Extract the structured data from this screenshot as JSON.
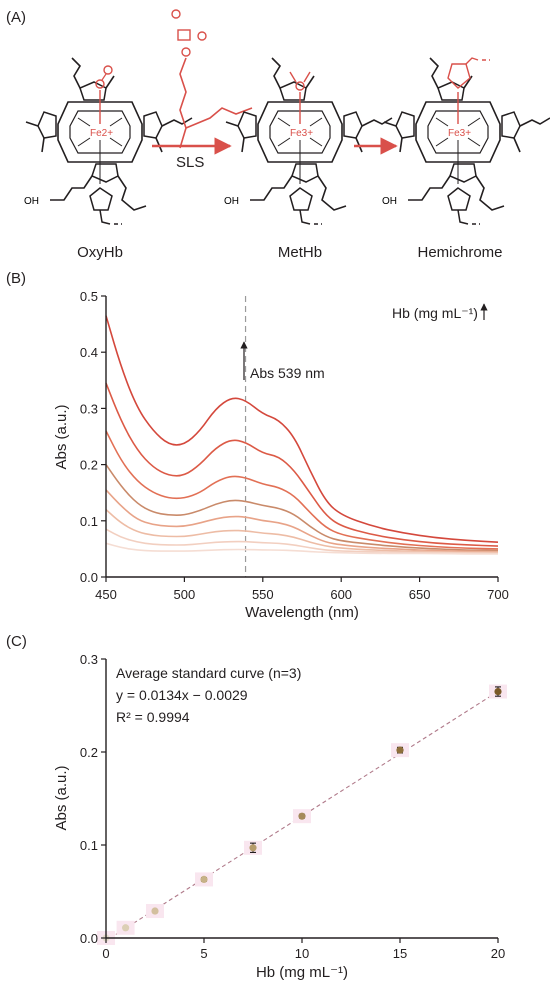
{
  "panels": {
    "a": "(A)",
    "b": "(B)",
    "c": "(C)"
  },
  "scheme": {
    "molecules": [
      "OxyHb",
      "MetHb",
      "Hemichrome"
    ],
    "reagent": "SLS",
    "iron_labels": [
      "Fe2+",
      "Fe3+",
      "Fe3+"
    ],
    "acid_label": "OH",
    "accent_color": "#d9504a"
  },
  "chart_data": [
    {
      "type": "line",
      "xlabel": "Wavelength (nm)",
      "ylabel": "Abs (a.u.)",
      "xlim": [
        450,
        700
      ],
      "ylim": [
        0,
        0.5
      ],
      "xticks": [
        "450",
        "500",
        "550",
        "600",
        "650",
        "700"
      ],
      "yticks": [
        "0.0",
        "0.1",
        "0.2",
        "0.3",
        "0.4",
        "0.5"
      ],
      "marker_line_x": 539,
      "annotation": "Abs 539 nm",
      "legend_note": "Hb (mg mL⁻¹)",
      "x": [
        450,
        460,
        470,
        480,
        490,
        500,
        510,
        520,
        530,
        539,
        550,
        560,
        570,
        580,
        590,
        600,
        620,
        640,
        660,
        680,
        700
      ],
      "series": [
        {
          "color": "#d4483c",
          "values": [
            0.465,
            0.37,
            0.3,
            0.26,
            0.235,
            0.235,
            0.26,
            0.3,
            0.32,
            0.315,
            0.29,
            0.28,
            0.25,
            0.19,
            0.135,
            0.11,
            0.09,
            0.078,
            0.07,
            0.065,
            0.062
          ]
        },
        {
          "color": "#dc5a46",
          "values": [
            0.345,
            0.275,
            0.225,
            0.195,
            0.18,
            0.18,
            0.2,
            0.23,
            0.245,
            0.24,
            0.22,
            0.215,
            0.19,
            0.15,
            0.11,
            0.09,
            0.075,
            0.066,
            0.06,
            0.057,
            0.055
          ]
        },
        {
          "color": "#e27055",
          "values": [
            0.26,
            0.205,
            0.17,
            0.15,
            0.14,
            0.14,
            0.15,
            0.17,
            0.18,
            0.177,
            0.165,
            0.16,
            0.145,
            0.115,
            0.088,
            0.075,
            0.065,
            0.058,
            0.054,
            0.051,
            0.05
          ]
        },
        {
          "color": "#c98a6a",
          "values": [
            0.2,
            0.16,
            0.13,
            0.115,
            0.11,
            0.11,
            0.118,
            0.13,
            0.137,
            0.135,
            0.127,
            0.123,
            0.112,
            0.09,
            0.072,
            0.064,
            0.058,
            0.053,
            0.05,
            0.048,
            0.047
          ]
        },
        {
          "color": "#e8a388",
          "values": [
            0.155,
            0.125,
            0.102,
            0.093,
            0.09,
            0.09,
            0.096,
            0.104,
            0.108,
            0.107,
            0.1,
            0.097,
            0.089,
            0.074,
            0.062,
            0.057,
            0.052,
            0.049,
            0.047,
            0.046,
            0.045
          ]
        },
        {
          "color": "#edbca5",
          "values": [
            0.12,
            0.095,
            0.08,
            0.074,
            0.072,
            0.072,
            0.076,
            0.081,
            0.083,
            0.082,
            0.078,
            0.076,
            0.071,
            0.062,
            0.055,
            0.051,
            0.048,
            0.046,
            0.045,
            0.044,
            0.044
          ]
        },
        {
          "color": "#f2cfc0",
          "values": [
            0.085,
            0.07,
            0.062,
            0.058,
            0.057,
            0.057,
            0.059,
            0.062,
            0.063,
            0.063,
            0.061,
            0.06,
            0.057,
            0.052,
            0.048,
            0.046,
            0.045,
            0.044,
            0.043,
            0.043,
            0.042
          ]
        },
        {
          "color": "#f5ddd3",
          "values": [
            0.06,
            0.052,
            0.048,
            0.046,
            0.046,
            0.046,
            0.047,
            0.048,
            0.049,
            0.049,
            0.048,
            0.048,
            0.047,
            0.045,
            0.044,
            0.043,
            0.042,
            0.042,
            0.042,
            0.041,
            0.041
          ]
        }
      ]
    },
    {
      "type": "scatter",
      "xlabel": "Hb (mg mL⁻¹)",
      "ylabel": "Abs (a.u.)",
      "xlim": [
        0,
        20
      ],
      "ylim": [
        0,
        0.3
      ],
      "xticks": [
        "0",
        "5",
        "10",
        "15",
        "20"
      ],
      "yticks": [
        "0.0",
        "0.1",
        "0.2",
        "0.3"
      ],
      "annotation_lines": [
        "Average standard curve (n=3)",
        "y = 0.0134x − 0.0029",
        "R² = 0.9994"
      ],
      "fit": {
        "slope": 0.0134,
        "intercept": -0.0029
      },
      "points": [
        {
          "x": 0,
          "y": 0.0,
          "err": 0.001,
          "color": "#e6dccb"
        },
        {
          "x": 1,
          "y": 0.011,
          "err": 0.001,
          "color": "#dccfb5"
        },
        {
          "x": 2.5,
          "y": 0.029,
          "err": 0.001,
          "color": "#d3c09e"
        },
        {
          "x": 5,
          "y": 0.063,
          "err": 0.002,
          "color": "#c7b287"
        },
        {
          "x": 7.5,
          "y": 0.097,
          "err": 0.005,
          "color": "#b69c6c"
        },
        {
          "x": 10,
          "y": 0.131,
          "err": 0.002,
          "color": "#a58a5a"
        },
        {
          "x": 15,
          "y": 0.202,
          "err": 0.003,
          "color": "#8e6f3b"
        },
        {
          "x": 20,
          "y": 0.265,
          "err": 0.005,
          "color": "#7a5a28"
        }
      ]
    }
  ]
}
